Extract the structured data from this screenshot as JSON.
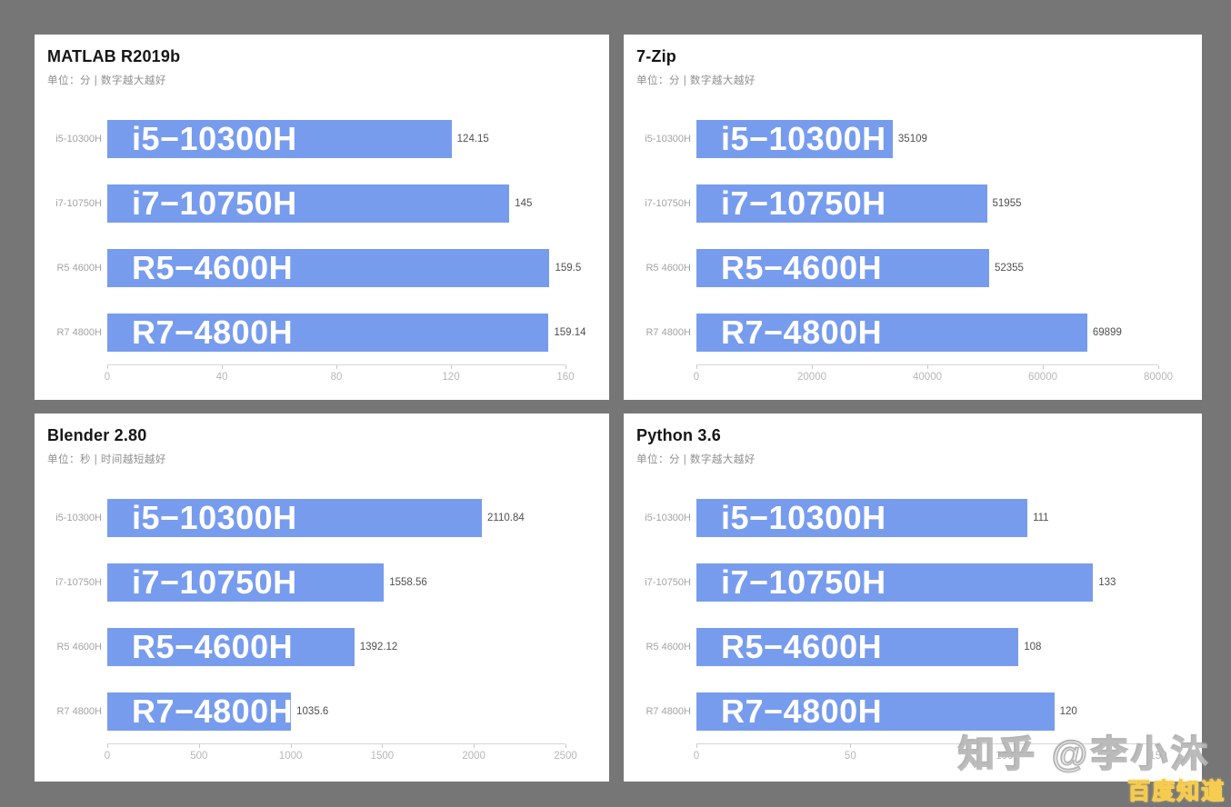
{
  "page": {
    "background_color": "#767676",
    "panel_color": "#ffffff",
    "bar_color": "#779CEE"
  },
  "watermarks": {
    "zhihu": "知乎 @李小沐",
    "baidu": "百度知道"
  },
  "chart_data": [
    {
      "type": "bar",
      "orientation": "horizontal",
      "title": "MATLAB R2019b",
      "subtitle": "单位：分 | 数字越大越好",
      "categories": [
        "i5-10300H",
        "i7-10750H",
        "R5 4600H",
        "R7 4800H"
      ],
      "bar_labels": [
        "i5−10300H",
        "i7−10750H",
        "R5−4600H",
        "R7−4800H"
      ],
      "values": [
        124.15,
        145,
        159.5,
        159.14
      ],
      "value_labels": [
        "124.15",
        "145",
        "159.5",
        "159.14"
      ],
      "xlabel": "",
      "ylabel": "",
      "xlim": [
        0,
        160
      ],
      "xticks": [
        0,
        40,
        80,
        120,
        160
      ],
      "grid": false,
      "legend": false,
      "bar_color": "#779CEE"
    },
    {
      "type": "bar",
      "orientation": "horizontal",
      "title": "7-Zip",
      "subtitle": "单位：分 | 数字越大越好",
      "categories": [
        "i5-10300H",
        "i7-10750H",
        "R5 4600H",
        "R7 4800H"
      ],
      "bar_labels": [
        "i5−10300H",
        "i7−10750H",
        "R5−4600H",
        "R7−4800H"
      ],
      "values": [
        35109,
        51955,
        52355,
        69899
      ],
      "value_labels": [
        "35109",
        "51955",
        "52355",
        "69899"
      ],
      "xlabel": "",
      "ylabel": "",
      "xlim": [
        0,
        80000
      ],
      "xticks": [
        0,
        20000,
        40000,
        60000,
        80000
      ],
      "grid": false,
      "legend": false,
      "bar_color": "#779CEE"
    },
    {
      "type": "bar",
      "orientation": "horizontal",
      "title": "Blender 2.80",
      "subtitle": "单位：秒 | 时间越短越好",
      "categories": [
        "i5-10300H",
        "i7-10750H",
        "R5 4600H",
        "R7 4800H"
      ],
      "bar_labels": [
        "i5−10300H",
        "i7−10750H",
        "R5−4600H",
        "R7−4800H"
      ],
      "values": [
        2110.84,
        1558.56,
        1392.12,
        1035.6
      ],
      "value_labels": [
        "2110.84",
        "1558.56",
        "1392.12",
        "1035.6"
      ],
      "xlabel": "",
      "ylabel": "",
      "xlim": [
        0,
        2500
      ],
      "xticks": [
        0,
        500,
        1000,
        1500,
        2000,
        2500
      ],
      "grid": false,
      "legend": false,
      "bar_color": "#779CEE"
    },
    {
      "type": "bar",
      "orientation": "horizontal",
      "title": "Python 3.6",
      "subtitle": "单位：分 | 数字越大越好",
      "categories": [
        "i5-10300H",
        "i7-10750H",
        "R5 4600H",
        "R7 4800H"
      ],
      "bar_labels": [
        "i5−10300H",
        "i7−10750H",
        "R5−4600H",
        "R7−4800H"
      ],
      "values": [
        111,
        133,
        108,
        120
      ],
      "value_labels": [
        "111",
        "133",
        "108",
        "120"
      ],
      "xlabel": "",
      "ylabel": "",
      "xlim": [
        0,
        150
      ],
      "xticks": [
        0,
        50,
        100,
        150
      ],
      "grid": false,
      "legend": false,
      "bar_color": "#779CEE"
    }
  ]
}
